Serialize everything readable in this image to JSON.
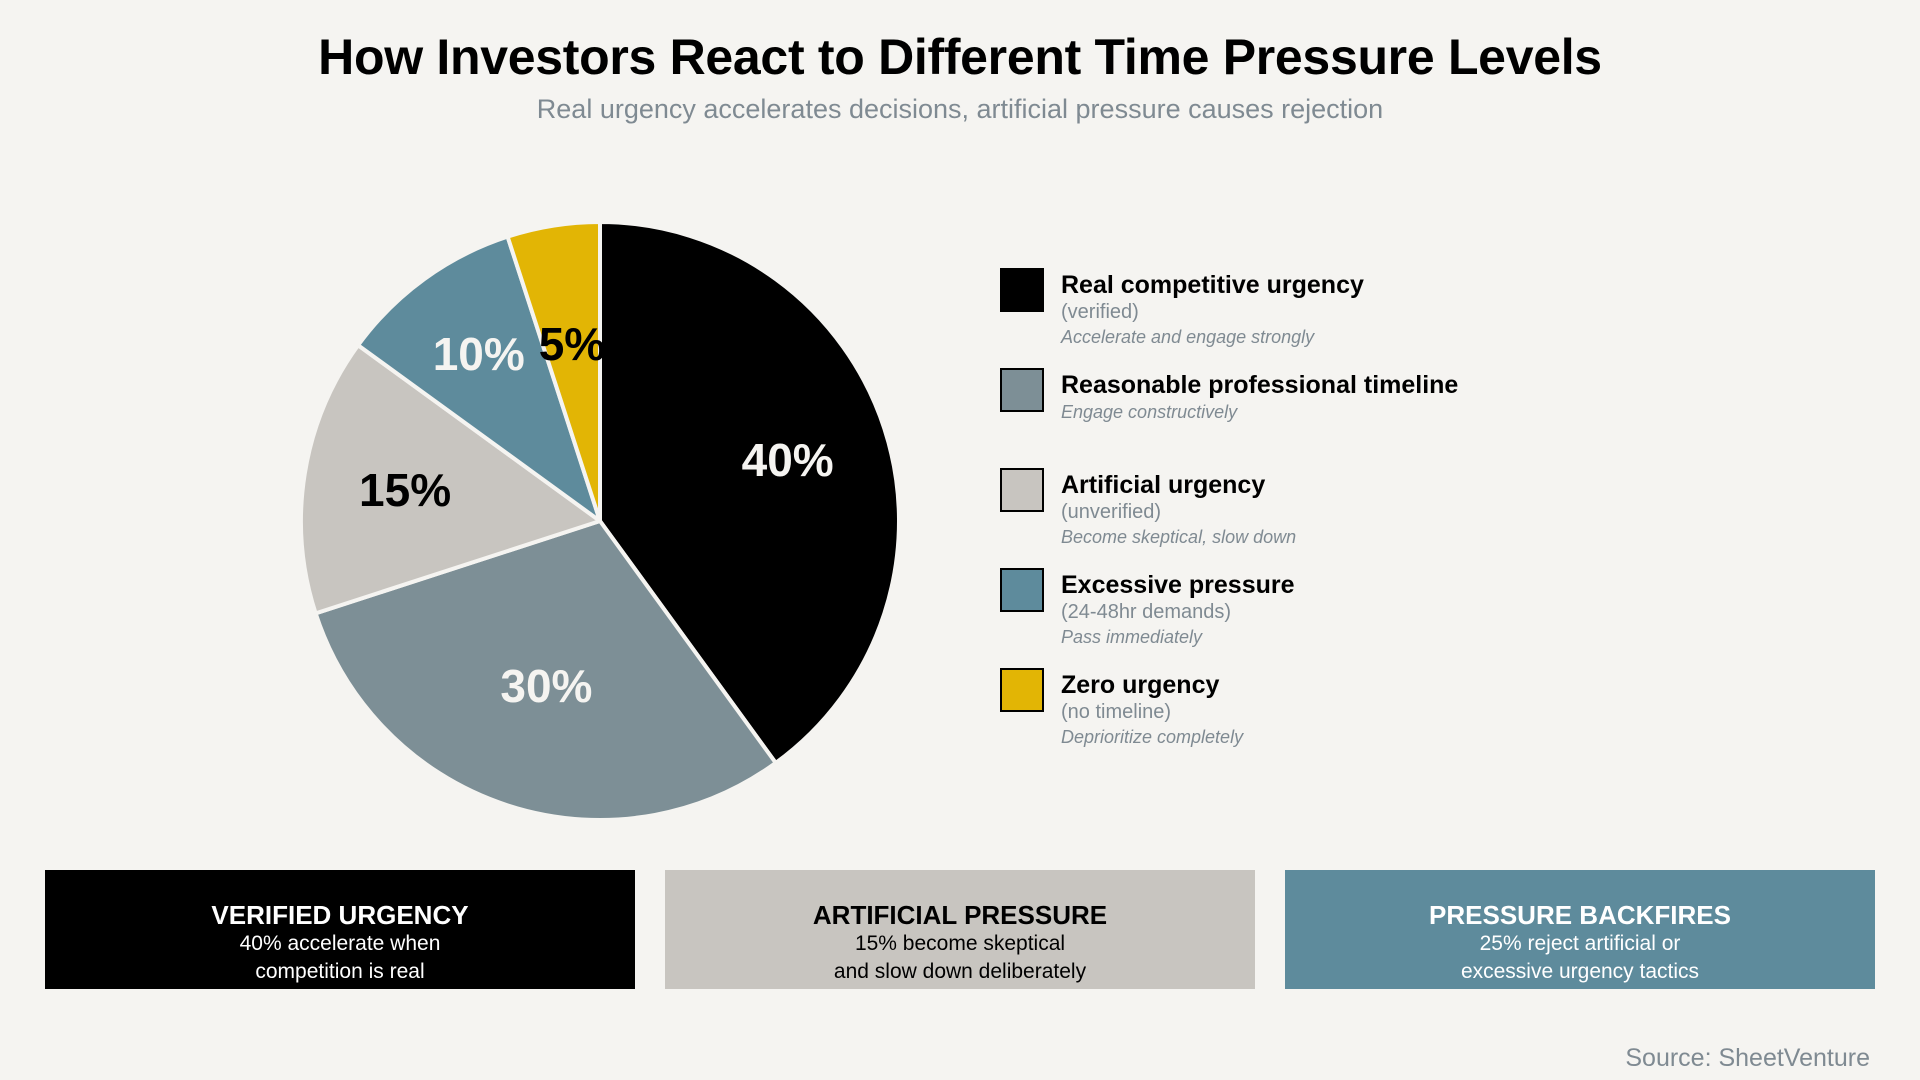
{
  "chart_data": {
    "type": "pie",
    "title": "How Investors React to Different Time Pressure Levels",
    "subtitle": "Real urgency accelerates decisions, artificial pressure causes rejection",
    "slices": [
      {
        "label": "Real competitive urgency",
        "qualifier": "(verified)",
        "note": "Accelerate and engage strongly",
        "value": 40,
        "display": "40%",
        "color": "#000000",
        "label_color": "#f5f4f1"
      },
      {
        "label": "Reasonable professional timeline",
        "qualifier": "",
        "note": "Engage constructively",
        "value": 30,
        "display": "30%",
        "color": "#7d8f96",
        "label_color": "#f5f4f1"
      },
      {
        "label": "Artificial urgency",
        "qualifier": "(unverified)",
        "note": "Become skeptical, slow down",
        "value": 15,
        "display": "15%",
        "color": "#c8c5c0",
        "label_color": "#000000"
      },
      {
        "label": "Excessive pressure",
        "qualifier": "(24-48hr demands)",
        "note": "Pass immediately",
        "value": 10,
        "display": "10%",
        "color": "#5e8b9c",
        "label_color": "#f5f4f1"
      },
      {
        "label": "Zero urgency",
        "qualifier": "(no timeline)",
        "note": "Deprioritize completely",
        "value": 5,
        "display": "5%",
        "color": "#e2b505",
        "label_color": "#000000"
      }
    ],
    "start_angle": "12 o'clock",
    "direction": "clockwise",
    "legend_position": "right"
  },
  "boxes": [
    {
      "title": "VERIFIED URGENCY",
      "line1": "40% accelerate when",
      "line2": "competition is real",
      "bg": "#000000",
      "fg": "#ffffff"
    },
    {
      "title": "ARTIFICIAL PRESSURE",
      "line1": "15% become skeptical",
      "line2": "and slow down deliberately",
      "bg": "#c8c5c0",
      "fg": "#000000"
    },
    {
      "title": "PRESSURE BACKFIRES",
      "line1": "25% reject artificial or",
      "line2": "excessive urgency tactics",
      "bg": "#5e8b9c",
      "fg": "#ffffff"
    }
  ],
  "source": "Source: SheetVenture"
}
